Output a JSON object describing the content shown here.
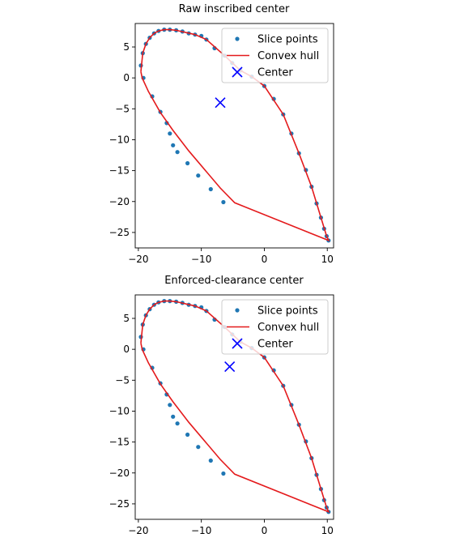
{
  "chart_data": [
    {
      "type": "scatter",
      "title": "Raw inscribed center",
      "xlabel": "",
      "ylabel": "",
      "xlim": [
        -20.5,
        11.0
      ],
      "ylim": [
        -27.5,
        8.8
      ],
      "xticks": [
        -20,
        -10,
        0,
        10
      ],
      "yticks": [
        5,
        0,
        -5,
        -10,
        -15,
        -20,
        -25
      ],
      "grid": false,
      "legend_position": "top-right",
      "legend": [
        "Slice points",
        "Convex hull",
        "Center"
      ],
      "series": [
        {
          "name": "Slice points",
          "kind": "scatter",
          "color": "#1f77b4",
          "x": [
            -19.6,
            -19.3,
            -18.8,
            -18.2,
            -17.5,
            -16.8,
            -15.9,
            -15.0,
            -14.0,
            -13.0,
            -12.0,
            -11.0,
            -10.0,
            -9.2,
            -7.9,
            -6.3,
            -5.1,
            -3.8,
            -2.0,
            0.0,
            1.5,
            3.0,
            4.3,
            5.5,
            6.6,
            7.5,
            8.3,
            9.0,
            9.5,
            9.9,
            10.2,
            -19.2,
            -17.8,
            -16.5,
            -15.5,
            -15.0,
            -14.5,
            -13.8,
            -12.2,
            -10.5,
            -8.5,
            -6.5
          ],
          "y": [
            2.0,
            4.0,
            5.5,
            6.5,
            7.2,
            7.6,
            7.8,
            7.8,
            7.7,
            7.5,
            7.2,
            7.0,
            6.8,
            6.2,
            4.8,
            3.6,
            2.4,
            1.2,
            0.2,
            -1.3,
            -3.4,
            -5.9,
            -9.0,
            -12.2,
            -14.9,
            -17.6,
            -20.3,
            -22.6,
            -24.4,
            -25.6,
            -26.3,
            0.0,
            -3.0,
            -5.5,
            -7.3,
            -9.0,
            -10.9,
            -12.0,
            -13.8,
            -15.8,
            -18.0,
            -20.1
          ]
        },
        {
          "name": "Convex hull",
          "kind": "line",
          "color": "#e41a1c",
          "x": [
            -19.6,
            -19.3,
            -18.8,
            -18.2,
            -17.5,
            -16.8,
            -15.9,
            -15.0,
            -14.0,
            -11.0,
            -9.2,
            -6.3,
            -3.8,
            -2.0,
            0.0,
            3.0,
            5.5,
            7.5,
            9.0,
            9.9,
            10.2,
            -4.7,
            -7.0,
            -12.0,
            -14.5,
            -16.5,
            -18.4,
            -19.4,
            -19.6
          ],
          "y": [
            1.0,
            4.0,
            5.5,
            6.5,
            7.2,
            7.6,
            7.8,
            7.8,
            7.7,
            7.0,
            6.2,
            3.6,
            1.2,
            0.2,
            -1.3,
            -5.9,
            -12.2,
            -17.6,
            -22.6,
            -25.6,
            -26.3,
            -20.2,
            -17.8,
            -11.8,
            -8.5,
            -5.6,
            -2.2,
            0.0,
            1.0
          ]
        },
        {
          "name": "Center",
          "kind": "scatter",
          "marker": "x",
          "color": "#0000ff",
          "x": [
            -7.0
          ],
          "y": [
            -4.0
          ]
        }
      ]
    },
    {
      "type": "scatter",
      "title": "Enforced-clearance center",
      "xlabel": "",
      "ylabel": "",
      "xlim": [
        -20.5,
        11.0
      ],
      "ylim": [
        -27.5,
        8.8
      ],
      "xticks": [
        -20,
        -10,
        0,
        10
      ],
      "yticks": [
        5,
        0,
        -5,
        -10,
        -15,
        -20,
        -25
      ],
      "grid": false,
      "legend_position": "top-right",
      "legend": [
        "Slice points",
        "Convex hull",
        "Center"
      ],
      "series": [
        {
          "name": "Slice points",
          "kind": "scatter",
          "color": "#1f77b4",
          "x": [
            -19.6,
            -19.3,
            -18.8,
            -18.2,
            -17.5,
            -16.8,
            -15.9,
            -15.0,
            -14.0,
            -13.0,
            -12.0,
            -11.0,
            -10.0,
            -9.2,
            -7.9,
            -6.3,
            -5.1,
            -3.8,
            -2.0,
            0.0,
            1.5,
            3.0,
            4.3,
            5.5,
            6.6,
            7.5,
            8.3,
            9.0,
            9.5,
            9.9,
            10.2,
            -19.2,
            -17.8,
            -16.5,
            -15.5,
            -15.0,
            -14.5,
            -13.8,
            -12.2,
            -10.5,
            -8.5,
            -6.5
          ],
          "y": [
            2.0,
            4.0,
            5.5,
            6.5,
            7.2,
            7.6,
            7.8,
            7.8,
            7.7,
            7.5,
            7.2,
            7.0,
            6.8,
            6.2,
            4.8,
            3.6,
            2.4,
            1.2,
            0.2,
            -1.3,
            -3.4,
            -5.9,
            -9.0,
            -12.2,
            -14.9,
            -17.6,
            -20.3,
            -22.6,
            -24.4,
            -25.6,
            -26.3,
            0.0,
            -3.0,
            -5.5,
            -7.3,
            -9.0,
            -10.9,
            -12.0,
            -13.8,
            -15.8,
            -18.0,
            -20.1
          ]
        },
        {
          "name": "Convex hull",
          "kind": "line",
          "color": "#e41a1c",
          "x": [
            -19.6,
            -19.3,
            -18.8,
            -18.2,
            -17.5,
            -16.8,
            -15.9,
            -15.0,
            -14.0,
            -11.0,
            -9.2,
            -6.3,
            -3.8,
            -2.0,
            0.0,
            3.0,
            5.5,
            7.5,
            9.0,
            9.9,
            10.2,
            -4.7,
            -7.0,
            -12.0,
            -14.5,
            -16.5,
            -18.4,
            -19.4,
            -19.6
          ],
          "y": [
            1.0,
            4.0,
            5.5,
            6.5,
            7.2,
            7.6,
            7.8,
            7.8,
            7.7,
            7.0,
            6.2,
            3.6,
            1.2,
            0.2,
            -1.3,
            -5.9,
            -12.2,
            -17.6,
            -22.6,
            -25.6,
            -26.3,
            -20.2,
            -17.8,
            -11.8,
            -8.5,
            -5.6,
            -2.2,
            0.0,
            1.0
          ]
        },
        {
          "name": "Center",
          "kind": "scatter",
          "marker": "x",
          "color": "#0000ff",
          "x": [
            -5.5
          ],
          "y": [
            -2.8
          ]
        }
      ]
    }
  ]
}
